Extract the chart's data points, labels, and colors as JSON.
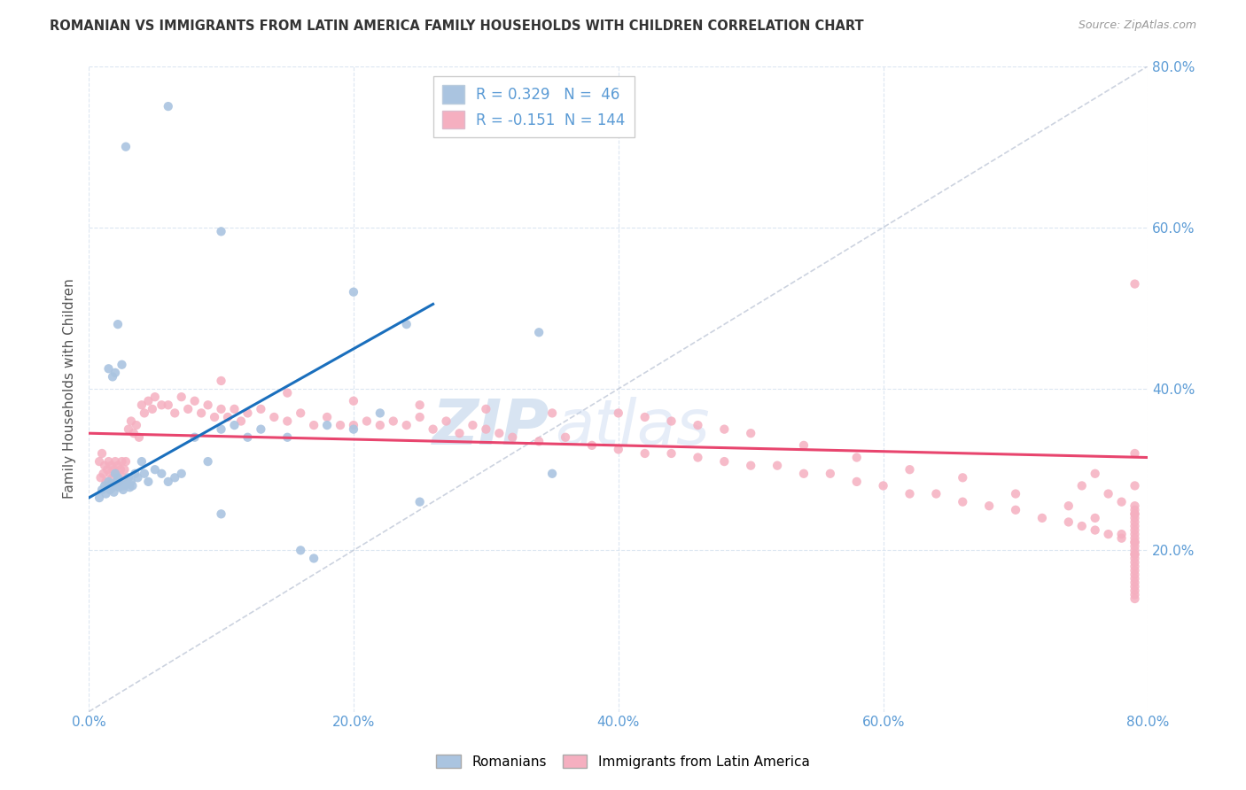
{
  "title": "ROMANIAN VS IMMIGRANTS FROM LATIN AMERICA FAMILY HOUSEHOLDS WITH CHILDREN CORRELATION CHART",
  "source": "Source: ZipAtlas.com",
  "ylabel": "Family Households with Children",
  "xlim": [
    0.0,
    0.8
  ],
  "ylim": [
    0.0,
    0.8
  ],
  "xticks": [
    0.0,
    0.2,
    0.4,
    0.6,
    0.8
  ],
  "yticks": [
    0.2,
    0.4,
    0.6,
    0.8
  ],
  "romanian_color": "#aac4e0",
  "latin_color": "#f5afc0",
  "romanian_line_color": "#1a6fbd",
  "latin_line_color": "#e8456e",
  "dashed_line_color": "#c0c8d8",
  "tick_color": "#5b9bd5",
  "R_romanian": 0.329,
  "N_romanian": 46,
  "R_latin": -0.151,
  "N_latin": 144,
  "legend_label_romanian": "Romanians",
  "legend_label_latin": "Immigrants from Latin America",
  "watermark_zip": "ZIP",
  "watermark_atlas": "atlas",
  "rom_x": [
    0.008,
    0.01,
    0.012,
    0.013,
    0.015,
    0.015,
    0.016,
    0.017,
    0.018,
    0.019,
    0.02,
    0.021,
    0.022,
    0.023,
    0.024,
    0.025,
    0.026,
    0.027,
    0.028,
    0.03,
    0.031,
    0.032,
    0.033,
    0.035,
    0.037,
    0.04,
    0.042,
    0.045,
    0.05,
    0.055,
    0.06,
    0.065,
    0.07,
    0.08,
    0.09,
    0.1,
    0.11,
    0.12,
    0.13,
    0.15,
    0.18,
    0.2,
    0.22,
    0.24,
    0.25,
    0.35
  ],
  "rom_y": [
    0.265,
    0.275,
    0.28,
    0.27,
    0.28,
    0.285,
    0.275,
    0.282,
    0.278,
    0.272,
    0.295,
    0.285,
    0.29,
    0.278,
    0.28,
    0.282,
    0.275,
    0.28,
    0.285,
    0.29,
    0.278,
    0.285,
    0.28,
    0.295,
    0.29,
    0.31,
    0.295,
    0.285,
    0.3,
    0.295,
    0.285,
    0.29,
    0.295,
    0.34,
    0.31,
    0.35,
    0.355,
    0.34,
    0.35,
    0.34,
    0.355,
    0.35,
    0.37,
    0.48,
    0.26,
    0.295
  ],
  "rom_outliers_x": [
    0.028,
    0.06,
    0.1,
    0.1,
    0.2,
    0.34
  ],
  "rom_outliers_y": [
    0.7,
    0.75,
    0.595,
    0.245,
    0.52,
    0.47
  ],
  "rom_extra_x": [
    0.015,
    0.018,
    0.02,
    0.022,
    0.025,
    0.16,
    0.17
  ],
  "rom_extra_y": [
    0.425,
    0.415,
    0.42,
    0.48,
    0.43,
    0.2,
    0.19
  ],
  "lat_x": [
    0.008,
    0.009,
    0.01,
    0.011,
    0.012,
    0.013,
    0.014,
    0.015,
    0.016,
    0.017,
    0.018,
    0.019,
    0.02,
    0.021,
    0.022,
    0.023,
    0.024,
    0.025,
    0.026,
    0.027,
    0.028,
    0.03,
    0.032,
    0.034,
    0.036,
    0.038,
    0.04,
    0.042,
    0.045,
    0.048,
    0.05,
    0.055,
    0.06,
    0.065,
    0.07,
    0.075,
    0.08,
    0.085,
    0.09,
    0.095,
    0.1,
    0.105,
    0.11,
    0.115,
    0.12,
    0.13,
    0.14,
    0.15,
    0.16,
    0.17,
    0.18,
    0.19,
    0.2,
    0.21,
    0.22,
    0.23,
    0.24,
    0.25,
    0.26,
    0.27,
    0.28,
    0.29,
    0.3,
    0.31,
    0.32,
    0.34,
    0.36,
    0.38,
    0.4,
    0.42,
    0.44,
    0.46,
    0.48,
    0.5,
    0.52,
    0.54,
    0.56,
    0.58,
    0.6,
    0.62,
    0.64,
    0.66,
    0.68,
    0.7,
    0.72,
    0.74,
    0.75,
    0.76,
    0.77,
    0.78,
    0.79
  ],
  "lat_y": [
    0.31,
    0.29,
    0.32,
    0.295,
    0.305,
    0.285,
    0.3,
    0.31,
    0.295,
    0.305,
    0.29,
    0.3,
    0.31,
    0.295,
    0.305,
    0.285,
    0.3,
    0.31,
    0.29,
    0.3,
    0.31,
    0.35,
    0.36,
    0.345,
    0.355,
    0.34,
    0.38,
    0.37,
    0.385,
    0.375,
    0.39,
    0.38,
    0.38,
    0.37,
    0.39,
    0.375,
    0.385,
    0.37,
    0.38,
    0.365,
    0.375,
    0.365,
    0.375,
    0.36,
    0.37,
    0.375,
    0.365,
    0.36,
    0.37,
    0.355,
    0.365,
    0.355,
    0.355,
    0.36,
    0.355,
    0.36,
    0.355,
    0.365,
    0.35,
    0.36,
    0.345,
    0.355,
    0.35,
    0.345,
    0.34,
    0.335,
    0.34,
    0.33,
    0.325,
    0.32,
    0.32,
    0.315,
    0.31,
    0.305,
    0.305,
    0.295,
    0.295,
    0.285,
    0.28,
    0.27,
    0.27,
    0.26,
    0.255,
    0.25,
    0.24,
    0.235,
    0.23,
    0.225,
    0.22,
    0.215,
    0.21
  ],
  "lat_extra_x": [
    0.1,
    0.15,
    0.2,
    0.25,
    0.3,
    0.35,
    0.4,
    0.42,
    0.44,
    0.46,
    0.48,
    0.5,
    0.54,
    0.58,
    0.62,
    0.66,
    0.7,
    0.74,
    0.76,
    0.78,
    0.76,
    0.75,
    0.77,
    0.78,
    0.79,
    0.79,
    0.79,
    0.79,
    0.79,
    0.79,
    0.79,
    0.79,
    0.79,
    0.79,
    0.79,
    0.79,
    0.79,
    0.79,
    0.79,
    0.79,
    0.79,
    0.79,
    0.79,
    0.79,
    0.79,
    0.79,
    0.79,
    0.79,
    0.79,
    0.79,
    0.79,
    0.79,
    0.79
  ],
  "lat_extra_y": [
    0.41,
    0.395,
    0.385,
    0.38,
    0.375,
    0.37,
    0.37,
    0.365,
    0.36,
    0.355,
    0.35,
    0.345,
    0.33,
    0.315,
    0.3,
    0.29,
    0.27,
    0.255,
    0.24,
    0.22,
    0.295,
    0.28,
    0.27,
    0.26,
    0.255,
    0.25,
    0.245,
    0.24,
    0.235,
    0.23,
    0.225,
    0.22,
    0.215,
    0.21,
    0.205,
    0.2,
    0.195,
    0.19,
    0.185,
    0.18,
    0.175,
    0.17,
    0.165,
    0.16,
    0.155,
    0.15,
    0.145,
    0.14,
    0.195,
    0.245,
    0.28,
    0.32,
    0.53
  ],
  "rom_line_x": [
    0.0,
    0.26
  ],
  "rom_line_y": [
    0.265,
    0.505
  ],
  "lat_line_x": [
    0.0,
    0.8
  ],
  "lat_line_y": [
    0.345,
    0.315
  ]
}
